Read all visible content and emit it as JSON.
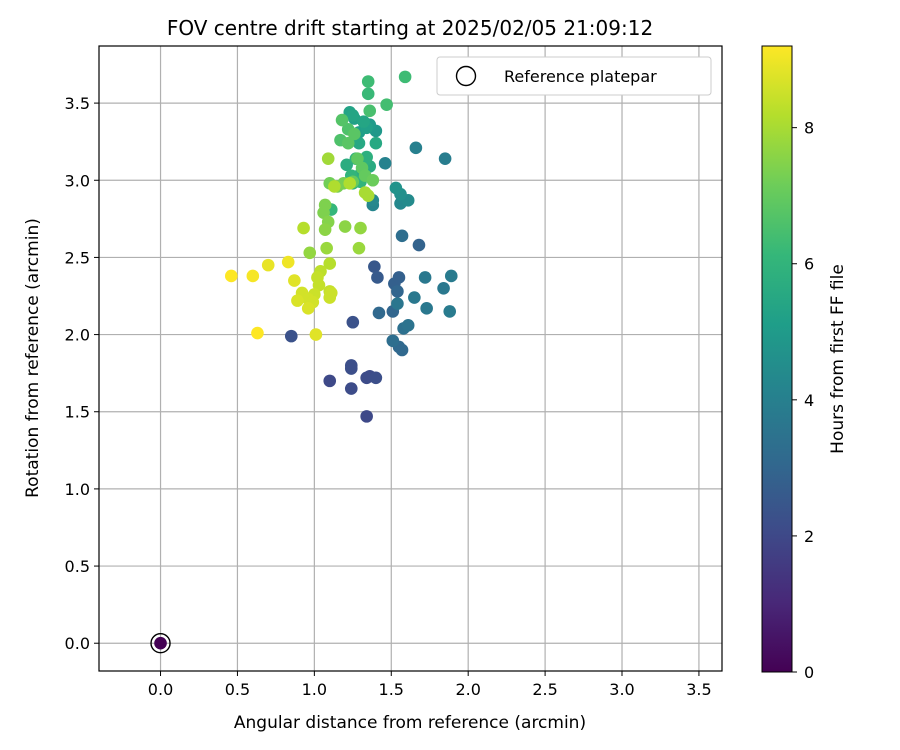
{
  "chart_data": {
    "type": "scatter",
    "title": "FOV centre drift starting at 2025/02/05 21:09:12",
    "xlabel": "Angular distance from reference (arcmin)",
    "ylabel": "Rotation from reference (arcmin)",
    "xlim": [
      -0.4,
      3.65
    ],
    "ylim": [
      -0.18,
      3.87
    ],
    "xticks": [
      0.0,
      0.5,
      1.0,
      1.5,
      2.0,
      2.5,
      3.0,
      3.5
    ],
    "yticks": [
      0.0,
      0.5,
      1.0,
      1.5,
      2.0,
      2.5,
      3.0,
      3.5
    ],
    "grid": true,
    "legend": {
      "placement": "top-right",
      "entries": [
        "Reference platepar"
      ]
    },
    "reference_point": {
      "x": 0.0,
      "y": 0.0,
      "label": "Reference platepar"
    },
    "colorbar": {
      "label": "Hours from first FF file",
      "colormap": "viridis",
      "range": [
        0,
        9.2
      ],
      "ticks": [
        0,
        2,
        4,
        6,
        8
      ]
    },
    "series": [
      {
        "points": [
          [
            0.0,
            0.0,
            0.0
          ],
          [
            1.34,
            1.47,
            2.0
          ],
          [
            1.1,
            1.7,
            2.0
          ],
          [
            1.24,
            1.65,
            2.1
          ],
          [
            1.34,
            1.72,
            2.1
          ],
          [
            1.36,
            1.73,
            2.1
          ],
          [
            1.4,
            1.72,
            2.2
          ],
          [
            1.24,
            1.78,
            2.2
          ],
          [
            1.24,
            1.8,
            2.2
          ],
          [
            0.85,
            1.99,
            2.3
          ],
          [
            1.25,
            2.08,
            2.3
          ],
          [
            1.39,
            2.44,
            2.5
          ],
          [
            1.41,
            2.37,
            2.6
          ],
          [
            1.52,
            2.33,
            2.8
          ],
          [
            1.55,
            2.37,
            2.8
          ],
          [
            1.68,
            2.58,
            2.9
          ],
          [
            1.51,
            2.15,
            3.0
          ],
          [
            1.54,
            2.28,
            3.0
          ],
          [
            1.42,
            2.14,
            3.1
          ],
          [
            1.55,
            1.92,
            3.1
          ],
          [
            1.57,
            1.9,
            3.1
          ],
          [
            1.51,
            1.96,
            3.3
          ],
          [
            1.57,
            2.64,
            3.3
          ],
          [
            1.58,
            2.04,
            3.4
          ],
          [
            1.61,
            2.06,
            3.5
          ],
          [
            1.54,
            2.2,
            3.6
          ],
          [
            1.73,
            2.17,
            3.7
          ],
          [
            1.65,
            2.24,
            3.7
          ],
          [
            1.84,
            2.3,
            3.7
          ],
          [
            1.72,
            2.37,
            3.7
          ],
          [
            1.89,
            2.38,
            3.8
          ],
          [
            1.88,
            2.15,
            3.8
          ],
          [
            1.85,
            3.14,
            3.9
          ],
          [
            1.66,
            3.21,
            4.0
          ],
          [
            1.46,
            3.11,
            4.1
          ],
          [
            1.38,
            2.84,
            4.2
          ],
          [
            1.38,
            2.87,
            4.3
          ],
          [
            1.56,
            2.85,
            4.3
          ],
          [
            1.61,
            2.87,
            4.4
          ],
          [
            1.56,
            2.91,
            4.6
          ],
          [
            1.53,
            2.95,
            4.7
          ],
          [
            1.4,
            3.32,
            4.9
          ],
          [
            1.36,
            3.36,
            5.0
          ],
          [
            1.29,
            3.31,
            5.1
          ],
          [
            1.26,
            3.4,
            5.2
          ],
          [
            1.34,
            3.34,
            5.2
          ],
          [
            1.23,
            3.44,
            5.3
          ],
          [
            1.25,
            3.42,
            5.4
          ],
          [
            1.32,
            3.38,
            5.4
          ],
          [
            1.4,
            3.24,
            5.5
          ],
          [
            1.29,
            3.24,
            5.5
          ],
          [
            1.36,
            3.09,
            5.6
          ],
          [
            1.3,
            3.04,
            5.6
          ],
          [
            1.21,
            3.1,
            5.7
          ],
          [
            1.33,
            3.13,
            5.8
          ],
          [
            1.34,
            3.15,
            5.8
          ],
          [
            1.27,
            3.14,
            5.9
          ],
          [
            1.25,
            2.98,
            5.9
          ],
          [
            1.24,
            3.03,
            6.0
          ],
          [
            1.3,
            2.99,
            6.0
          ],
          [
            1.11,
            2.81,
            6.1
          ],
          [
            1.35,
            3.56,
            6.2
          ],
          [
            1.35,
            3.64,
            6.3
          ],
          [
            1.59,
            3.67,
            6.3
          ],
          [
            1.47,
            3.49,
            6.4
          ],
          [
            1.36,
            3.45,
            6.5
          ],
          [
            1.17,
            3.26,
            6.6
          ],
          [
            1.22,
            3.33,
            6.6
          ],
          [
            1.18,
            3.39,
            6.7
          ],
          [
            1.26,
            3.3,
            6.8
          ],
          [
            1.22,
            3.24,
            6.8
          ],
          [
            1.28,
            3.14,
            6.9
          ],
          [
            1.31,
            3.08,
            6.9
          ],
          [
            1.33,
            3.03,
            7.0
          ],
          [
            1.25,
            2.99,
            7.0
          ],
          [
            1.38,
            3.0,
            7.1
          ],
          [
            1.1,
            2.98,
            7.2
          ],
          [
            1.15,
            2.96,
            7.3
          ],
          [
            1.19,
            2.98,
            7.3
          ],
          [
            1.07,
            2.84,
            7.4
          ],
          [
            1.06,
            2.79,
            7.4
          ],
          [
            1.09,
            2.73,
            7.5
          ],
          [
            1.07,
            2.68,
            7.6
          ],
          [
            1.2,
            2.7,
            7.6
          ],
          [
            1.3,
            2.69,
            7.7
          ],
          [
            0.97,
            2.53,
            7.7
          ],
          [
            1.08,
            2.56,
            7.8
          ],
          [
            1.29,
            2.56,
            7.8
          ],
          [
            1.09,
            3.14,
            7.9
          ],
          [
            1.35,
            2.9,
            8.0
          ],
          [
            1.33,
            2.92,
            8.0
          ],
          [
            1.23,
            2.98,
            8.1
          ],
          [
            1.13,
            2.96,
            8.1
          ],
          [
            0.93,
            2.69,
            8.2
          ],
          [
            1.1,
            2.46,
            8.2
          ],
          [
            1.04,
            2.41,
            8.3
          ],
          [
            1.02,
            2.37,
            8.4
          ],
          [
            1.03,
            2.32,
            8.4
          ],
          [
            1.1,
            2.28,
            8.4
          ],
          [
            1.0,
            2.26,
            8.5
          ],
          [
            1.11,
            2.27,
            8.5
          ],
          [
            1.1,
            2.24,
            8.5
          ],
          [
            0.92,
            2.27,
            8.6
          ],
          [
            0.96,
            2.23,
            8.6
          ],
          [
            0.99,
            2.21,
            8.6
          ],
          [
            0.89,
            2.22,
            8.7
          ],
          [
            0.96,
            2.17,
            8.7
          ],
          [
            0.87,
            2.35,
            8.8
          ],
          [
            1.01,
            2.0,
            8.8
          ],
          [
            0.7,
            2.45,
            8.9
          ],
          [
            0.83,
            2.47,
            9.0
          ],
          [
            0.6,
            2.38,
            9.1
          ],
          [
            0.46,
            2.38,
            9.2
          ],
          [
            0.63,
            2.01,
            9.2
          ]
        ]
      }
    ]
  }
}
